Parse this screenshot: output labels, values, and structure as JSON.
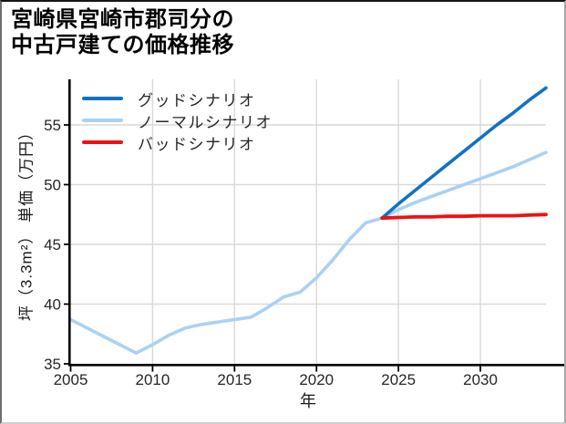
{
  "title": {
    "line1": "宮崎県宮崎市郡司分の",
    "line2": "中古戸建ての価格推移"
  },
  "axes": {
    "x_label": "年",
    "y_label": "坪（3.3m²） 単価（万円）"
  },
  "legend": [
    {
      "label": "グッドシナリオ",
      "color": "#1072c4"
    },
    {
      "label": "ノーマルシナリオ",
      "color": "#a9d1f5"
    },
    {
      "label": "バッドシナリオ",
      "color": "#ee1111"
    }
  ],
  "colors": {
    "grid": "#d9d9d9",
    "spine": "#000000",
    "tick_label": "#262626"
  },
  "chart_data": {
    "type": "line",
    "title": "宮崎県宮崎市郡司分の中古戸建ての価格推移",
    "xlabel": "年",
    "ylabel": "坪（3.3m²） 単価（万円）",
    "xlim": [
      2005,
      2034
    ],
    "ylim": [
      35,
      58.8
    ],
    "x_ticks": [
      2005,
      2010,
      2015,
      2020,
      2025,
      2030
    ],
    "y_ticks": [
      35,
      40,
      45,
      50,
      55
    ],
    "grid": true,
    "legend_position": "upper-left",
    "series": [
      {
        "name": "ノーマルシナリオ",
        "color": "#a9d1f5",
        "x": [
          2005,
          2006,
          2007,
          2008,
          2009,
          2010,
          2011,
          2012,
          2013,
          2014,
          2015,
          2016,
          2017,
          2018,
          2019,
          2020,
          2021,
          2022,
          2023,
          2024,
          2025,
          2026,
          2027,
          2028,
          2029,
          2030,
          2031,
          2032,
          2033,
          2034
        ],
        "y": [
          38.7,
          38.0,
          37.3,
          36.6,
          35.9,
          36.6,
          37.4,
          38.0,
          38.3,
          38.5,
          38.7,
          38.9,
          39.7,
          40.6,
          41.0,
          42.2,
          43.7,
          45.4,
          46.8,
          47.2,
          47.9,
          48.5,
          49.0,
          49.5,
          50.0,
          50.5,
          51.0,
          51.5,
          52.1,
          52.7
        ]
      },
      {
        "name": "グッドシナリオ",
        "color": "#1072c4",
        "x": [
          2024,
          2025,
          2026,
          2027,
          2028,
          2029,
          2030,
          2031,
          2032,
          2033,
          2034
        ],
        "y": [
          47.2,
          48.4,
          49.5,
          50.6,
          51.7,
          52.8,
          53.9,
          55.0,
          56.0,
          57.1,
          58.1
        ]
      },
      {
        "name": "バッドシナリオ",
        "color": "#ee1111",
        "x": [
          2024,
          2025,
          2026,
          2027,
          2028,
          2029,
          2030,
          2031,
          2032,
          2033,
          2034
        ],
        "y": [
          47.2,
          47.25,
          47.3,
          47.3,
          47.35,
          47.35,
          47.4,
          47.4,
          47.4,
          47.45,
          47.5
        ]
      }
    ]
  }
}
